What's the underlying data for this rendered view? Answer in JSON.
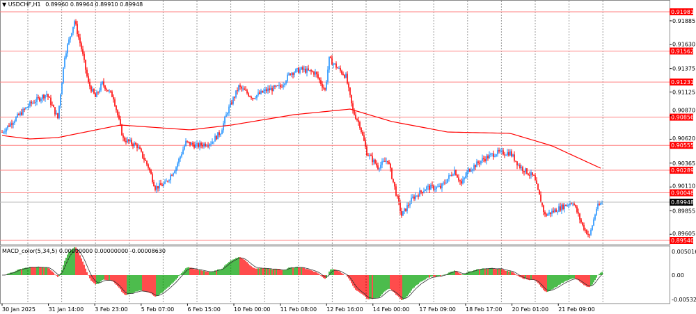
{
  "header": {
    "symbol_label": "USDCHF,H1",
    "ohlc": "0.89960 0.89964 0.89910 0.89948"
  },
  "macd_header": {
    "label": "MACD_color(5,34,5) 0.00000000 0.00000000 -0.00008630"
  },
  "chart_data": {
    "type": "candlestick",
    "symbol": "USDCHF",
    "timeframe": "H1",
    "price_ticks": [
      "0.91885",
      "0.91630",
      "0.91375",
      "0.91125",
      "0.90870",
      "0.90620",
      "0.90365",
      "0.90110",
      "0.89855",
      "0.89605"
    ],
    "price_range": [
      0.895,
      0.921
    ],
    "levels": [
      "0.91981",
      "0.91562",
      "0.91231",
      "0.90856",
      "0.90555",
      "0.90289",
      "0.90048",
      "0.89540"
    ],
    "current_price": "0.89948",
    "time_labels": [
      "30 Jan 2025",
      "31 Jan 14:00",
      "3 Feb 23:00",
      "5 Feb 07:00",
      "6 Feb 15:00",
      "10 Feb 00:00",
      "11 Feb 08:00",
      "12 Feb 16:00",
      "14 Feb 00:00",
      "17 Feb 09:00",
      "18 Feb 17:00",
      "20 Feb 01:00",
      "21 Feb 09:00"
    ],
    "price_path": [
      [
        0,
        0.90697
      ],
      [
        10,
        0.90846
      ],
      [
        20,
        0.90994
      ],
      [
        32,
        0.91105
      ],
      [
        40,
        0.90846
      ],
      [
        45,
        0.91514
      ],
      [
        52,
        0.91885
      ],
      [
        57,
        0.91588
      ],
      [
        62,
        0.91217
      ],
      [
        67,
        0.91068
      ],
      [
        72,
        0.91217
      ],
      [
        80,
        0.91068
      ],
      [
        87,
        0.90623
      ],
      [
        97,
        0.90549
      ],
      [
        105,
        0.90326
      ],
      [
        110,
        0.90104
      ],
      [
        117,
        0.90141
      ],
      [
        125,
        0.90326
      ],
      [
        132,
        0.90586
      ],
      [
        140,
        0.90549
      ],
      [
        150,
        0.90586
      ],
      [
        157,
        0.90697
      ],
      [
        162,
        0.9092
      ],
      [
        170,
        0.9118
      ],
      [
        180,
        0.91068
      ],
      [
        190,
        0.91143
      ],
      [
        200,
        0.9118
      ],
      [
        207,
        0.91328
      ],
      [
        215,
        0.91365
      ],
      [
        225,
        0.91328
      ],
      [
        232,
        0.91143
      ],
      [
        235,
        0.91476
      ],
      [
        242,
        0.91365
      ],
      [
        247,
        0.91291
      ],
      [
        252,
        0.9092
      ],
      [
        257,
        0.90772
      ],
      [
        262,
        0.90475
      ],
      [
        270,
        0.90326
      ],
      [
        277,
        0.90401
      ],
      [
        282,
        0.90104
      ],
      [
        287,
        0.89807
      ],
      [
        295,
        0.89993
      ],
      [
        305,
        0.90104
      ],
      [
        315,
        0.90104
      ],
      [
        325,
        0.90289
      ],
      [
        330,
        0.90141
      ],
      [
        335,
        0.90289
      ],
      [
        345,
        0.90401
      ],
      [
        355,
        0.90475
      ],
      [
        365,
        0.90475
      ],
      [
        372,
        0.90326
      ],
      [
        382,
        0.90215
      ],
      [
        390,
        0.89807
      ],
      [
        400,
        0.89881
      ],
      [
        410,
        0.89955
      ],
      [
        417,
        0.89696
      ],
      [
        422,
        0.89584
      ],
      [
        427,
        0.89881
      ],
      [
        431,
        0.89948
      ]
    ],
    "moving_average": [
      [
        0,
        0.9066
      ],
      [
        20,
        0.90623
      ],
      [
        40,
        0.90638
      ],
      [
        85,
        0.90772
      ],
      [
        135,
        0.9072
      ],
      [
        165,
        0.90772
      ],
      [
        210,
        0.90883
      ],
      [
        250,
        0.90942
      ],
      [
        280,
        0.90809
      ],
      [
        320,
        0.90697
      ],
      [
        365,
        0.90683
      ],
      [
        395,
        0.9055
      ],
      [
        431,
        0.90304
      ]
    ],
    "macd_ticks": [
      "0.0050160",
      "0.00",
      "-0.0053250"
    ],
    "colors": {
      "bull": "#1e90ff",
      "bear": "#ff0000",
      "ma": "#ff0000",
      "level": "#ff0000",
      "macd_up": "#00a000",
      "macd_down": "#ff0000"
    }
  }
}
